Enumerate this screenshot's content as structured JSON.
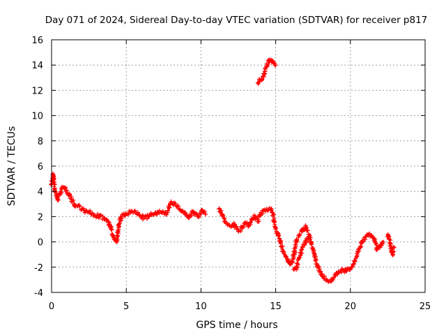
{
  "chart_data": {
    "type": "scatter",
    "title": "Day 071 of 2024, Sidereal Day-to-day VTEC variation (SDTVAR) for receiver p817",
    "xlabel": "GPS time / hours",
    "ylabel": "SDTVAR / TECUs",
    "xlim": [
      0,
      25
    ],
    "ylim": [
      -4,
      16
    ],
    "xticks": [
      0,
      5,
      10,
      15,
      20,
      25
    ],
    "yticks": [
      -4,
      -2,
      0,
      2,
      4,
      6,
      8,
      10,
      12,
      14,
      16
    ],
    "grid": true,
    "marker": "+",
    "color": "#ff0000",
    "series": [
      {
        "name": "SDTVAR",
        "segments": [
          {
            "x": [
              0.0,
              0.1,
              0.2,
              0.3,
              0.4,
              0.6,
              0.8,
              1.0,
              1.2,
              1.4,
              1.6,
              1.8,
              2.0,
              2.3,
              2.6,
              2.9,
              3.2,
              3.5,
              3.8,
              4.0,
              4.1,
              4.2,
              4.35,
              4.5,
              4.7,
              5.0,
              5.3,
              5.6,
              5.9,
              6.2,
              6.5,
              6.8,
              7.1,
              7.4,
              7.7,
              8.0,
              8.3,
              8.6,
              8.9,
              9.2,
              9.5,
              9.8,
              10.1,
              10.3
            ],
            "y": [
              4.6,
              5.4,
              4.2,
              3.7,
              3.3,
              4.0,
              4.3,
              4.1,
              3.8,
              3.2,
              2.8,
              2.9,
              2.6,
              2.4,
              2.3,
              2.1,
              2.0,
              1.9,
              1.6,
              1.0,
              0.5,
              0.2,
              0.1,
              1.4,
              2.0,
              2.2,
              2.4,
              2.3,
              2.1,
              1.9,
              2.0,
              2.2,
              2.4,
              2.3,
              2.2,
              3.2,
              2.9,
              2.6,
              2.3,
              1.9,
              2.4,
              2.0,
              2.5,
              2.2
            ]
          },
          {
            "x": [
              11.2,
              11.4,
              11.6,
              11.8,
              12.0,
              12.2,
              12.4,
              12.6,
              12.8,
              13.0,
              13.2,
              13.4,
              13.6,
              13.8,
              14.0,
              14.2,
              14.4,
              14.6,
              14.8,
              15.0,
              15.2,
              15.4,
              15.6,
              15.8,
              16.0,
              16.2,
              16.4,
              16.6,
              16.8,
              17.0,
              17.2,
              17.4,
              17.6,
              17.8,
              18.0,
              18.2,
              18.4,
              18.6,
              18.8,
              19.0,
              19.2,
              19.4,
              19.6,
              19.8,
              20.0,
              20.2,
              20.4,
              20.6,
              20.8,
              21.0,
              21.2,
              21.4,
              21.6,
              21.8,
              22.0,
              22.2
            ],
            "y": [
              2.6,
              2.2,
              1.6,
              1.4,
              1.2,
              1.5,
              1.0,
              0.9,
              1.2,
              1.5,
              1.3,
              1.7,
              2.0,
              1.6,
              2.2,
              2.5,
              2.6,
              2.7,
              2.3,
              1.0,
              0.5,
              -0.4,
              -1.0,
              -1.4,
              -1.8,
              -1.2,
              0.2,
              0.5,
              1.0,
              1.2,
              0.6,
              -0.2,
              -1.0,
              -1.9,
              -2.4,
              -2.8,
              -3.0,
              -3.1,
              -2.9,
              -2.7,
              -2.4,
              -2.2,
              -2.4,
              -2.1,
              -2.2,
              -1.8,
              -1.2,
              -0.5,
              0.1,
              0.4,
              0.6,
              0.5,
              0.2,
              -0.6,
              -0.3,
              0.0
            ]
          },
          {
            "x": [
              16.2,
              16.4,
              16.6,
              16.8,
              17.0,
              17.2
            ],
            "y": [
              -2.2,
              -2.0,
              -1.2,
              -0.4,
              0.0,
              0.3
            ]
          },
          {
            "x": [
              22.5,
              22.6,
              22.7,
              22.8,
              22.9
            ],
            "y": [
              0.6,
              0.2,
              -0.3,
              -1.0,
              -0.4
            ]
          },
          {
            "x": [
              13.8,
              13.9,
              14.0,
              14.1,
              14.2,
              14.3,
              14.4,
              14.5,
              14.6,
              14.7,
              14.8,
              14.9,
              15.0
            ],
            "y": [
              12.6,
              12.7,
              12.8,
              12.9,
              13.1,
              13.5,
              13.9,
              14.2,
              14.4,
              14.4,
              14.3,
              14.1,
              14.0
            ]
          }
        ]
      }
    ]
  }
}
